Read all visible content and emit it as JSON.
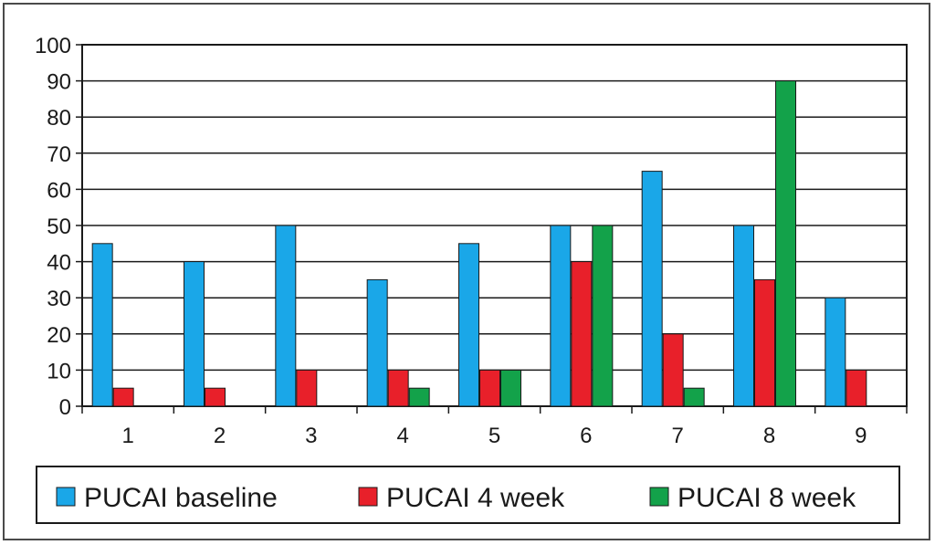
{
  "chart_data": {
    "type": "bar",
    "title": "",
    "xlabel": "",
    "ylabel": "",
    "categories": [
      "1",
      "2",
      "3",
      "4",
      "5",
      "6",
      "7",
      "8",
      "9"
    ],
    "ylim": [
      0,
      100
    ],
    "yticks": [
      0,
      10,
      20,
      30,
      40,
      50,
      60,
      70,
      80,
      90,
      100
    ],
    "grid": true,
    "legend_position": "bottom",
    "series": [
      {
        "name": "PUCAI baseline",
        "color": "#1aa7e8",
        "values": [
          45,
          40,
          50,
          35,
          45,
          50,
          65,
          50,
          30
        ]
      },
      {
        "name": "PUCAI 4 week",
        "color": "#e8202a",
        "values": [
          5,
          5,
          10,
          10,
          10,
          40,
          20,
          35,
          10
        ]
      },
      {
        "name": "PUCAI 8 week",
        "color": "#13a24a",
        "values": [
          0,
          0,
          0,
          5,
          10,
          50,
          5,
          90,
          0
        ]
      }
    ]
  }
}
